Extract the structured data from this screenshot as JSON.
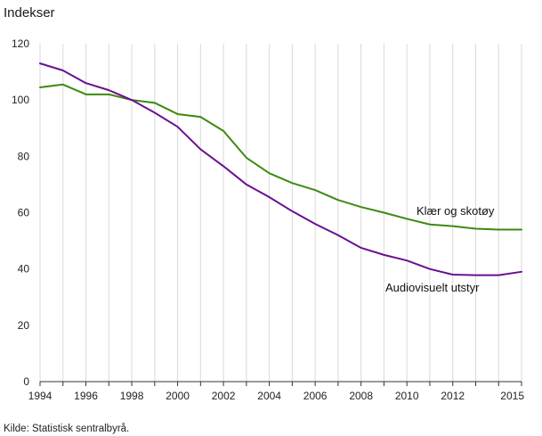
{
  "chart_data": {
    "type": "line",
    "title": "Indekser",
    "xlabel": "",
    "ylabel": "Indekser",
    "xlim": [
      1994,
      2015
    ],
    "ylim": [
      0,
      120
    ],
    "x_ticks": [
      1994,
      1996,
      1998,
      2000,
      2002,
      2004,
      2006,
      2008,
      2010,
      2012,
      2015
    ],
    "y_ticks": [
      0,
      20,
      40,
      60,
      80,
      100,
      120
    ],
    "grid": "vertical",
    "x": [
      1994,
      1995,
      1996,
      1997,
      1998,
      1999,
      2000,
      2001,
      2002,
      2003,
      2004,
      2005,
      2006,
      2007,
      2008,
      2009,
      2010,
      2011,
      2012,
      2013,
      2014,
      2015
    ],
    "series": [
      {
        "name": "Klær og skotøy",
        "color": "#3d8a12",
        "values": [
          104.5,
          105.5,
          102,
          102,
          100,
          99,
          95,
          94,
          89,
          79.5,
          74,
          70.5,
          68,
          64.5,
          62,
          60,
          57.8,
          55.8,
          55.2,
          54.3,
          54,
          54
        ]
      },
      {
        "name": "Audiovisuelt utstyr",
        "color": "#6b0f91",
        "values": [
          113,
          110.5,
          106,
          103.5,
          100,
          95.5,
          90.5,
          82.5,
          76.5,
          70,
          65.5,
          60.5,
          56,
          52,
          47.5,
          45,
          43,
          40,
          38,
          37.8,
          37.8,
          39
        ]
      }
    ]
  },
  "source_note": "Kilde: Statistisk sentralbyrå."
}
